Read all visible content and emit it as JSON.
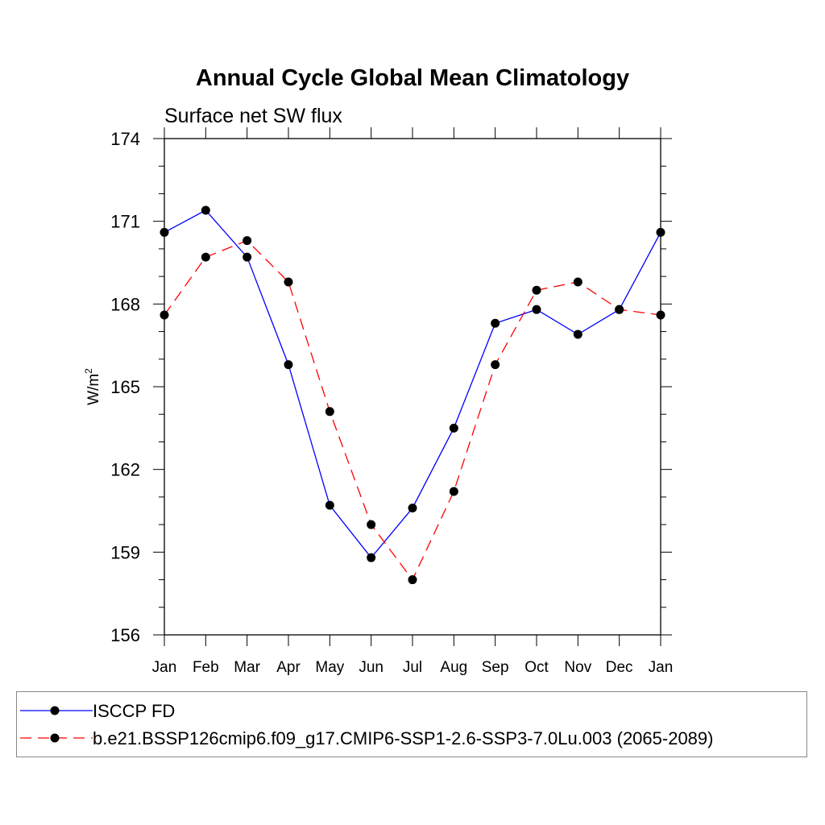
{
  "chart_data": {
    "type": "line",
    "title": "Annual Cycle Global Mean Climatology",
    "subtitle": "Surface net SW flux",
    "xlabel": "",
    "ylabel": "W/m",
    "ylabel_superscript": "2",
    "ylim": [
      156,
      174
    ],
    "yticks": [
      156,
      159,
      162,
      165,
      168,
      171,
      174
    ],
    "ytick_labels": [
      "156",
      "159",
      "162",
      "165",
      "168",
      "171",
      "174"
    ],
    "categories": [
      "Jan",
      "Feb",
      "Mar",
      "Apr",
      "May",
      "Jun",
      "Jul",
      "Aug",
      "Sep",
      "Oct",
      "Nov",
      "Dec",
      "Jan"
    ],
    "grid": false,
    "legend_position": "bottom",
    "series": [
      {
        "name": "ISCCP FD",
        "color": "#0000ff",
        "line_style": "solid",
        "marker": "filled-circle",
        "values": [
          170.6,
          171.4,
          169.7,
          165.8,
          160.7,
          158.8,
          160.6,
          163.5,
          167.3,
          167.8,
          166.9,
          167.8,
          170.6
        ]
      },
      {
        "name": "b.e21.BSSP126cmip6.f09_g17.CMIP6-SSP1-2.6-SSP3-7.0Lu.003 (2065-2089)",
        "color": "#ff0000",
        "line_style": "dashed",
        "marker": "filled-circle",
        "values": [
          167.6,
          169.7,
          170.3,
          168.8,
          164.1,
          160.0,
          158.0,
          161.2,
          165.8,
          168.5,
          168.8,
          167.8,
          167.6
        ]
      }
    ]
  }
}
